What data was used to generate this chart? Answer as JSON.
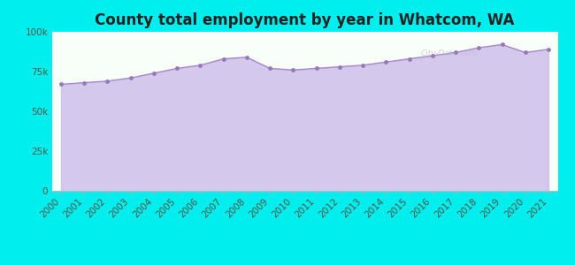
{
  "title": "County total employment by year in Whatcom, WA",
  "years": [
    2000,
    2001,
    2002,
    2003,
    2004,
    2005,
    2006,
    2007,
    2008,
    2009,
    2010,
    2011,
    2012,
    2013,
    2014,
    2015,
    2016,
    2017,
    2018,
    2019,
    2020,
    2021
  ],
  "values": [
    67000,
    68000,
    69000,
    71000,
    74000,
    77000,
    79000,
    83000,
    84000,
    77000,
    76000,
    77000,
    78000,
    79000,
    81000,
    83000,
    85000,
    87000,
    90000,
    92000,
    87000,
    89000
  ],
  "ylim": [
    0,
    100000
  ],
  "yticks": [
    0,
    25000,
    50000,
    75000,
    100000
  ],
  "ytick_labels": [
    "0",
    "25k",
    "50k",
    "75k",
    "100k"
  ],
  "background_color": "#00EEEE",
  "plot_bg_top": "#f0fff0",
  "plot_bg_bottom": "#ffffff",
  "fill_color": "#c8b8e8",
  "fill_alpha": 0.75,
  "line_color": "#aa88cc",
  "marker_color": "#9977bb",
  "marker_size": 3.5,
  "title_color": "#222222",
  "title_fontsize": 12,
  "tick_label_color": "#555544",
  "tick_fontsize": 7.5,
  "watermark": "City-Data.com"
}
